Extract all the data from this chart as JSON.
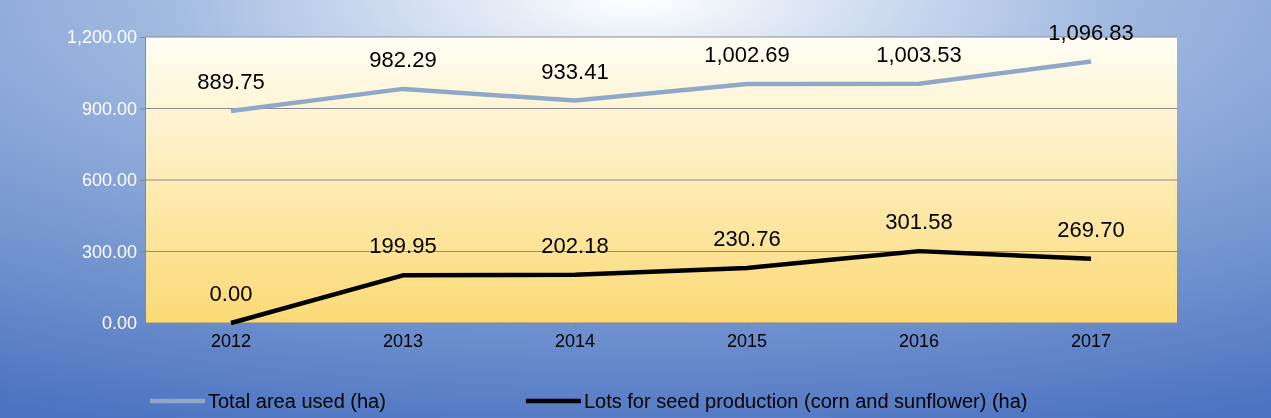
{
  "chart_data": {
    "type": "line",
    "categories": [
      "2012",
      "2013",
      "2014",
      "2015",
      "2016",
      "2017"
    ],
    "series": [
      {
        "name": "Total area used (ha)",
        "color": "#8fa8c8",
        "values": [
          889.75,
          982.29,
          933.41,
          1002.69,
          1003.53,
          1096.83
        ],
        "value_labels": [
          "889.75",
          "982.29",
          "933.41",
          "1,002.69",
          "1,003.53",
          "1,096.83"
        ]
      },
      {
        "name": "Lots for seed production (corn and sunflower) (ha)",
        "color": "#000000",
        "values": [
          0,
          199.95,
          202.18,
          230.76,
          301.58,
          269.7
        ],
        "value_labels": [
          "0.00",
          "199.95",
          "202.18",
          "230.76",
          "301.58",
          "269.70"
        ]
      }
    ],
    "ylim": [
      0,
      1200
    ],
    "yticks": [
      {
        "value": 0,
        "label": "0.00"
      },
      {
        "value": 300,
        "label": "300.00"
      },
      {
        "value": 600,
        "label": "600.00"
      },
      {
        "value": 900,
        "label": "900.00"
      },
      {
        "value": 1200,
        "label": "1,200.00"
      }
    ],
    "grid": "y",
    "legend": "bottom",
    "marker": "none",
    "line_style": "solid"
  }
}
